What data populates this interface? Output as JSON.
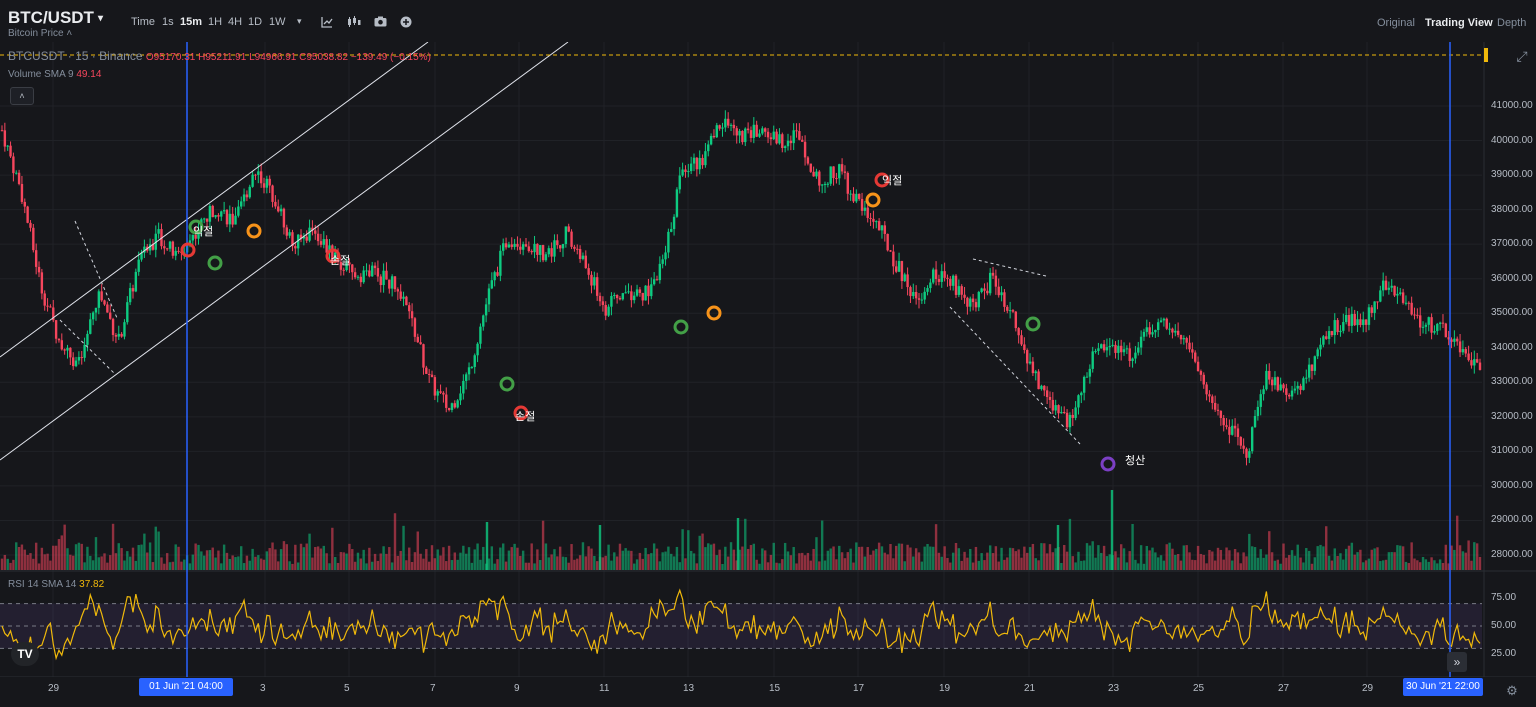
{
  "header": {
    "symbol": "BTC/USDT",
    "caret": "▾",
    "subtitle": "Bitcoin Price ˄",
    "timeframes": [
      "Time",
      "1s",
      "15m",
      "1H",
      "4H",
      "1D",
      "1W",
      "▾"
    ],
    "active_timeframe": "15m",
    "views": [
      "Original",
      "Trading View",
      "Depth"
    ],
    "active_view": "Trading View"
  },
  "legend": {
    "ohlc": "BTCUSDT · 15 · Binance",
    "ohlc_values": "O95170.31 H95211.91 L94966.91 C95038.82 −139.49 (−0.15%)",
    "volume_label": "Volume SMA 9",
    "volume_value": "49.14",
    "rsi_label": "RSI 14 SMA 14",
    "rsi_value": "37.82",
    "collapse": "˄",
    "logo": "TV"
  },
  "axis": {
    "price_ticks": [
      "41000.00",
      "40000.00",
      "39000.00",
      "38000.00",
      "37000.00",
      "36000.00",
      "35000.00",
      "34000.00",
      "33000.00",
      "32000.00",
      "31000.00",
      "30000.00",
      "29000.00",
      "28000.00"
    ],
    "rsi_ticks": [
      "75.00",
      "50.00",
      "25.00"
    ],
    "date_ticks": [
      "29",
      "3",
      "5",
      "7",
      "9",
      "11",
      "13",
      "15",
      "17",
      "19",
      "21",
      "23",
      "25",
      "27",
      "29"
    ],
    "highlight_start": "01 Jun '21   04:00",
    "highlight_end": "30 Jun '21   22:00"
  },
  "annotations": {
    "labels": [
      "익절",
      "손절",
      "추가",
      "손절",
      "익절",
      "청산"
    ]
  },
  "colors": {
    "up": "#0ecb81",
    "down": "#f6465d",
    "rsi": "#f0b90b",
    "vline": "#2962ff",
    "purple": "#7b3fc4",
    "orange": "#f7931a",
    "red": "#e53935",
    "green": "#43a047"
  },
  "chart_data": {
    "type": "candlestick",
    "symbol": "BTCUSDT",
    "interval": "15",
    "exchange": "Binance",
    "ylim": [
      27500,
      42000
    ],
    "x_start": "28 May '21",
    "x_end": "30 Jun '21",
    "close_path": [
      [
        0,
        40300
      ],
      [
        1,
        38500
      ],
      [
        2,
        35800
      ],
      [
        3,
        34100
      ],
      [
        4,
        33500
      ],
      [
        5,
        35600
      ],
      [
        6,
        34200
      ],
      [
        7,
        36400
      ],
      [
        8,
        37300
      ],
      [
        9,
        36600
      ],
      [
        10,
        37400
      ],
      [
        11,
        38100
      ],
      [
        12,
        37600
      ],
      [
        13,
        39200
      ],
      [
        14,
        38400
      ],
      [
        15,
        36900
      ],
      [
        16,
        37500
      ],
      [
        17,
        36600
      ],
      [
        18,
        36100
      ],
      [
        19,
        36200
      ],
      [
        20,
        35900
      ],
      [
        21,
        34900
      ],
      [
        22,
        33000
      ],
      [
        23,
        32200
      ],
      [
        24,
        33300
      ],
      [
        25,
        35500
      ],
      [
        26,
        37200
      ],
      [
        27,
        37000
      ],
      [
        28,
        36700
      ],
      [
        29,
        37300
      ],
      [
        30,
        36400
      ],
      [
        31,
        35100
      ],
      [
        32,
        35600
      ],
      [
        33,
        35500
      ],
      [
        34,
        36400
      ],
      [
        35,
        39300
      ],
      [
        36,
        39400
      ],
      [
        37,
        40600
      ],
      [
        38,
        40100
      ],
      [
        39,
        40300
      ],
      [
        40,
        40000
      ],
      [
        41,
        40200
      ],
      [
        42,
        38700
      ],
      [
        43,
        39200
      ],
      [
        44,
        38200
      ],
      [
        45,
        37600
      ],
      [
        46,
        36400
      ],
      [
        47,
        35400
      ],
      [
        48,
        36200
      ],
      [
        49,
        35800
      ],
      [
        50,
        35200
      ],
      [
        51,
        36100
      ],
      [
        52,
        34800
      ],
      [
        53,
        33200
      ],
      [
        54,
        32400
      ],
      [
        55,
        31800
      ],
      [
        56,
        33600
      ],
      [
        57,
        34200
      ],
      [
        58,
        33800
      ],
      [
        59,
        34500
      ],
      [
        60,
        34800
      ],
      [
        61,
        34100
      ],
      [
        62,
        32600
      ],
      [
        63,
        31800
      ],
      [
        64,
        30900
      ],
      [
        65,
        33300
      ],
      [
        66,
        32700
      ],
      [
        67,
        33000
      ],
      [
        68,
        34400
      ],
      [
        69,
        34800
      ],
      [
        70,
        34700
      ],
      [
        71,
        35900
      ],
      [
        72,
        35400
      ],
      [
        73,
        34700
      ],
      [
        74,
        34600
      ],
      [
        75,
        33900
      ],
      [
        76,
        33300
      ]
    ],
    "rsi_levels": [
      75,
      50,
      25
    ],
    "rsi_band": [
      30,
      70
    ]
  }
}
